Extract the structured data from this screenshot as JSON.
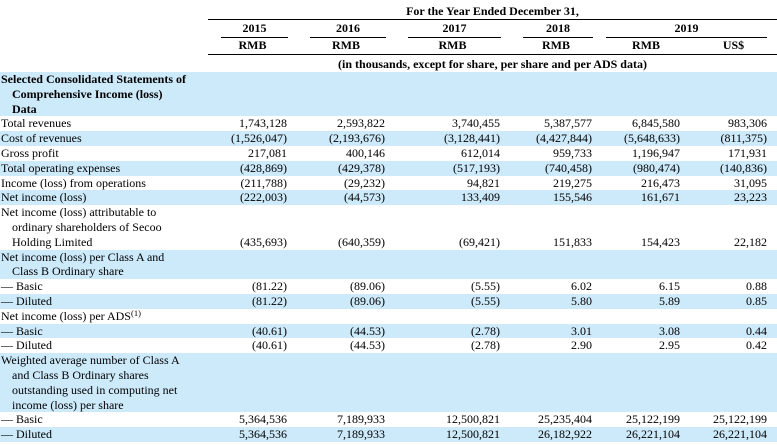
{
  "page": {
    "shade_color": "#cdeafb"
  },
  "table": {
    "period_title": "For the Year Ended December 31,",
    "years": [
      "2015",
      "2016",
      "2017",
      "2018",
      "2019"
    ],
    "currencies": [
      "RMB",
      "RMB",
      "RMB",
      "RMB",
      "RMB",
      "US$"
    ],
    "unit_note": "(in thousands, except for share, per share and per ADS data)",
    "rows": [
      {
        "label_lines": [
          "Selected Consolidated Statements of",
          "Comprehensive Income (loss)",
          "Data"
        ],
        "bold": true,
        "shaded": true,
        "values": [
          "",
          "",
          "",
          "",
          "",
          ""
        ]
      },
      {
        "label_lines": [
          "Total revenues"
        ],
        "bold": false,
        "shaded": false,
        "values": [
          "1,743,128",
          "2,593,822",
          "3,740,455",
          "5,387,577",
          "6,845,580",
          "983,306"
        ]
      },
      {
        "label_lines": [
          "Cost of revenues"
        ],
        "bold": false,
        "shaded": true,
        "values": [
          "(1,526,047)",
          "(2,193,676)",
          "(3,128,441)",
          "(4,427,844)",
          "(5,648,633)",
          "(811,375)"
        ]
      },
      {
        "label_lines": [
          "Gross profit"
        ],
        "bold": false,
        "shaded": false,
        "values": [
          "217,081",
          "400,146",
          "612,014",
          "959,733",
          "1,196,947",
          "171,931"
        ]
      },
      {
        "label_lines": [
          "Total operating expenses"
        ],
        "bold": false,
        "shaded": true,
        "values": [
          "(428,869)",
          "(429,378)",
          "(517,193)",
          "(740,458)",
          "(980,474)",
          "(140,836)"
        ]
      },
      {
        "label_lines": [
          "Income (loss) from operations"
        ],
        "bold": false,
        "shaded": false,
        "values": [
          "(211,788)",
          "(29,232)",
          "94,821",
          "219,275",
          "216,473",
          "31,095"
        ]
      },
      {
        "label_lines": [
          "Net income (loss)"
        ],
        "bold": false,
        "shaded": true,
        "values": [
          "(222,003)",
          "(44,573)",
          "133,409",
          "155,546",
          "161,671",
          "23,223"
        ]
      },
      {
        "label_lines": [
          "Net income (loss) attributable to",
          "ordinary shareholders of Secoo",
          "Holding Limited"
        ],
        "bold": false,
        "shaded": false,
        "values": [
          "(435,693)",
          "(640,359)",
          "(69,421)",
          "151,833",
          "154,423",
          "22,182"
        ]
      },
      {
        "label_lines": [
          "Net income (loss) per Class A and",
          "Class B Ordinary share"
        ],
        "bold": false,
        "shaded": true,
        "values": [
          "",
          "",
          "",
          "",
          "",
          ""
        ]
      },
      {
        "label_lines": [
          "— Basic"
        ],
        "bold": false,
        "shaded": false,
        "values": [
          "(81.22)",
          "(89.06)",
          "(5.55)",
          "6.02",
          "6.15",
          "0.88"
        ]
      },
      {
        "label_lines": [
          "— Diluted"
        ],
        "bold": false,
        "shaded": true,
        "values": [
          "(81.22)",
          "(89.06)",
          "(5.55)",
          "5.80",
          "5.89",
          "0.85"
        ]
      },
      {
        "label_lines": [
          "Net income (loss) per ADS"
        ],
        "sup": "(1)",
        "bold": false,
        "shaded": false,
        "values": [
          "",
          "",
          "",
          "",
          "",
          ""
        ]
      },
      {
        "label_lines": [
          "— Basic"
        ],
        "bold": false,
        "shaded": true,
        "values": [
          "(40.61)",
          "(44.53)",
          "(2.78)",
          "3.01",
          "3.08",
          "0.44"
        ]
      },
      {
        "label_lines": [
          "— Diluted"
        ],
        "bold": false,
        "shaded": false,
        "values": [
          "(40.61)",
          "(44.53)",
          "(2.78)",
          "2.90",
          "2.95",
          "0.42"
        ]
      },
      {
        "label_lines": [
          "Weighted average number of Class A",
          "and Class B Ordinary shares",
          "outstanding used in computing net",
          "income (loss) per share"
        ],
        "bold": false,
        "shaded": true,
        "values": [
          "",
          "",
          "",
          "",
          "",
          ""
        ]
      },
      {
        "label_lines": [
          "— Basic"
        ],
        "bold": false,
        "shaded": false,
        "values": [
          "5,364,536",
          "7,189,933",
          "12,500,821",
          "25,235,404",
          "25,122,199",
          "25,122,199"
        ]
      },
      {
        "label_lines": [
          "— Diluted"
        ],
        "bold": false,
        "shaded": true,
        "values": [
          "5,364,536",
          "7,189,933",
          "12,500,821",
          "26,182,922",
          "26,221,104",
          "26,221,104"
        ]
      }
    ]
  }
}
